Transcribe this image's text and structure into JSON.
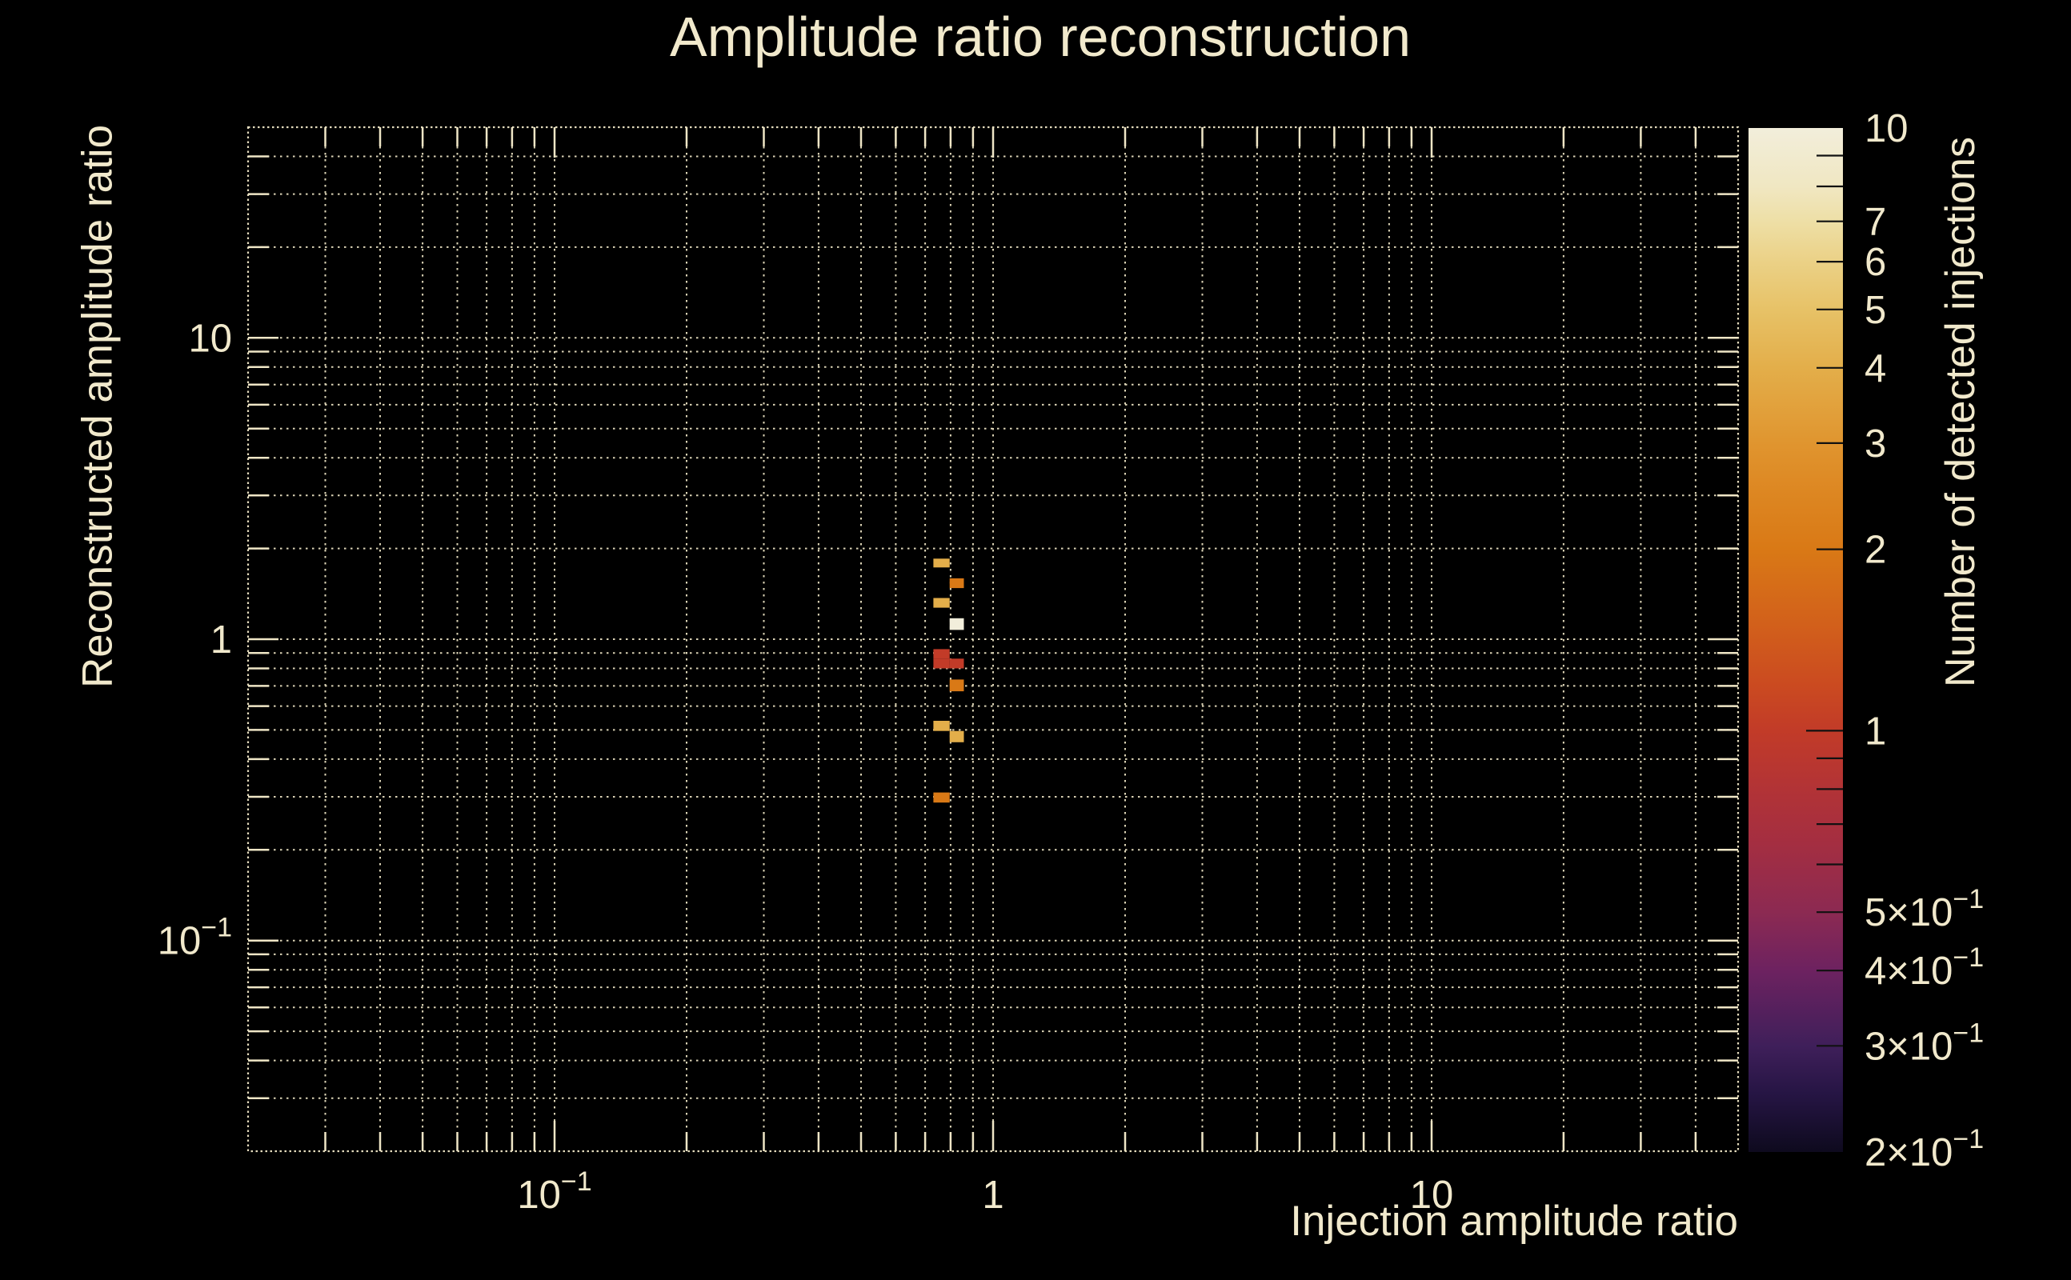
{
  "title": "Amplitude ratio reconstruction",
  "colors": {
    "background": "#000000",
    "text": "#f1e9cc",
    "grid": "#efe6c6",
    "frame": "#efe6c6",
    "colorbar_tick": "#111111"
  },
  "x_axis": {
    "title": "Injection amplitude ratio",
    "scale": "log",
    "min": 0.02,
    "max": 50,
    "tick_labels": [
      {
        "value": 0.1,
        "text": "10",
        "sup": "−1"
      },
      {
        "value": 1,
        "text": "1",
        "sup": ""
      },
      {
        "value": 10,
        "text": "10",
        "sup": ""
      }
    ]
  },
  "y_axis": {
    "title": "Reconstructed amplitude ratio",
    "scale": "log",
    "min": 0.02,
    "max": 50,
    "tick_labels": [
      {
        "value": 10,
        "text": "10",
        "sup": ""
      },
      {
        "value": 1,
        "text": "1",
        "sup": ""
      },
      {
        "value": 0.1,
        "text": "10",
        "sup": "−1"
      }
    ]
  },
  "colorbar": {
    "title": "Number of detected injections",
    "scale": "log",
    "min": 0.2,
    "max": 10,
    "tick_labels": [
      {
        "value": 10,
        "text": "10",
        "sup": ""
      },
      {
        "value": 7,
        "text": "7",
        "sup": ""
      },
      {
        "value": 6,
        "text": "6",
        "sup": ""
      },
      {
        "value": 5,
        "text": "5",
        "sup": ""
      },
      {
        "value": 4,
        "text": "4",
        "sup": ""
      },
      {
        "value": 3,
        "text": "3",
        "sup": ""
      },
      {
        "value": 2,
        "text": "2",
        "sup": ""
      },
      {
        "value": 1,
        "text": "1",
        "sup": ""
      },
      {
        "value": 0.5,
        "text": "5×10",
        "sup": "−1"
      },
      {
        "value": 0.4,
        "text": "4×10",
        "sup": "−1"
      },
      {
        "value": 0.3,
        "text": "3×10",
        "sup": "−1"
      },
      {
        "value": 0.2,
        "text": "2×10",
        "sup": "−1"
      }
    ],
    "gradient_stops": [
      {
        "value": 10,
        "color": "#f2eedb"
      },
      {
        "value": 8,
        "color": "#f0e7c2"
      },
      {
        "value": 7,
        "color": "#eedfa6"
      },
      {
        "value": 6,
        "color": "#ebd186"
      },
      {
        "value": 5,
        "color": "#e7c267"
      },
      {
        "value": 4,
        "color": "#e3ae4a"
      },
      {
        "value": 3,
        "color": "#e0952f"
      },
      {
        "value": 2.5,
        "color": "#dd8722"
      },
      {
        "value": 2,
        "color": "#d97916"
      },
      {
        "value": 1.5,
        "color": "#d2601b"
      },
      {
        "value": 1.2,
        "color": "#cb4b20"
      },
      {
        "value": 1,
        "color": "#c23b28"
      },
      {
        "value": 0.8,
        "color": "#b23336"
      },
      {
        "value": 0.65,
        "color": "#a42e41"
      },
      {
        "value": 0.5,
        "color": "#8c2a52"
      },
      {
        "value": 0.4,
        "color": "#6d2260"
      },
      {
        "value": 0.3,
        "color": "#3f1f5a"
      },
      {
        "value": 0.25,
        "color": "#261544"
      },
      {
        "value": 0.2,
        "color": "#0e0a1e"
      }
    ]
  },
  "chart_data": {
    "type": "heatmap",
    "title": "Amplitude ratio reconstruction",
    "xlabel": "Injection amplitude ratio",
    "ylabel": "Reconstructed amplitude ratio",
    "zlabel": "Number of detected injections",
    "x_range": [
      0.02,
      50
    ],
    "y_range": [
      0.02,
      50
    ],
    "z_range": [
      0.2,
      10
    ],
    "grid": "dotted log grid on both axes",
    "cells": [
      {
        "x_min": 0.731,
        "x_max": 0.796,
        "y_min": 1.731,
        "y_max": 1.851,
        "count": 4
      },
      {
        "x_min": 0.796,
        "x_max": 0.858,
        "y_min": 1.478,
        "y_max": 1.592,
        "count": 2
      },
      {
        "x_min": 0.731,
        "x_max": 0.796,
        "y_min": 1.272,
        "y_max": 1.37,
        "count": 4
      },
      {
        "x_min": 0.796,
        "x_max": 0.858,
        "y_min": 1.074,
        "y_max": 1.174,
        "count": 10
      },
      {
        "x_min": 0.731,
        "x_max": 0.796,
        "y_min": 0.862,
        "y_max": 0.927,
        "count": 1
      },
      {
        "x_min": 0.731,
        "x_max": 0.796,
        "y_min": 0.8,
        "y_max": 0.862,
        "count": 1
      },
      {
        "x_min": 0.796,
        "x_max": 0.858,
        "y_min": 0.8,
        "y_max": 0.862,
        "count": 1
      },
      {
        "x_min": 0.796,
        "x_max": 0.858,
        "y_min": 0.672,
        "y_max": 0.735,
        "count": 2
      },
      {
        "x_min": 0.731,
        "x_max": 0.796,
        "y_min": 0.496,
        "y_max": 0.536,
        "count": 4
      },
      {
        "x_min": 0.796,
        "x_max": 0.858,
        "y_min": 0.455,
        "y_max": 0.496,
        "count": 4
      },
      {
        "x_min": 0.731,
        "x_max": 0.796,
        "y_min": 0.287,
        "y_max": 0.31,
        "count": 2
      }
    ]
  }
}
